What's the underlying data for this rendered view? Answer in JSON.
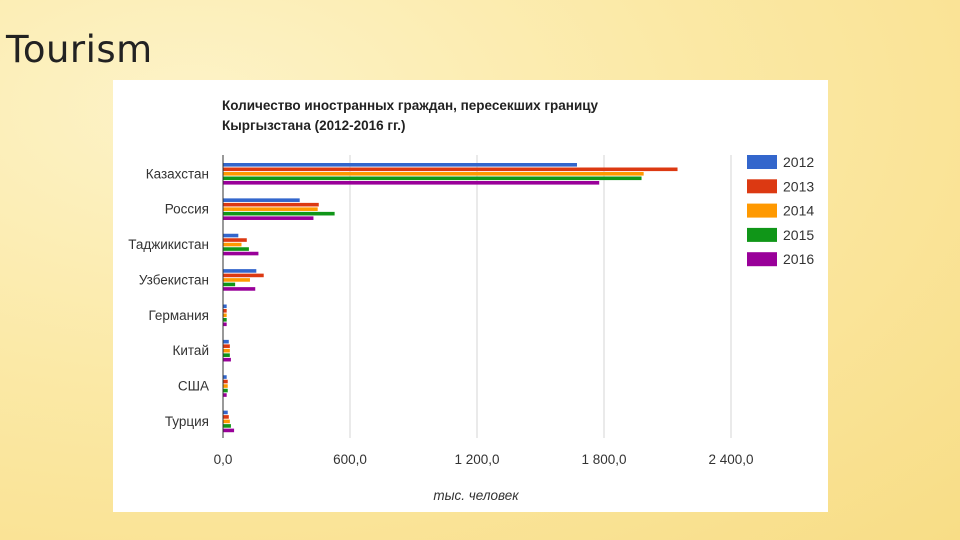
{
  "slide": {
    "title": "Tourism"
  },
  "chart_data": {
    "type": "bar",
    "orientation": "horizontal",
    "title": "Количество иностранных граждан, пересекших границу Кыргызстана (2012-2016 гг.)",
    "title_lines": [
      "Количество иностранных граждан, пересекших границу",
      "Кыргызстана (2012-2016 гг.)"
    ],
    "xlabel": "тыс. человек",
    "ylabel": "",
    "xlim": [
      0,
      2400
    ],
    "xticks": [
      0,
      600,
      1200,
      1800,
      2400
    ],
    "xtick_labels": [
      "0,0",
      "600,0",
      "1 200,0",
      "1 800,0",
      "2 400,0"
    ],
    "grid": true,
    "legend_position": "right",
    "categories": [
      "Казахстан",
      "Россия",
      "Таджикистан",
      "Узбекистан",
      "Германия",
      "Китай",
      "США",
      "Турция"
    ],
    "series": [
      {
        "name": "2012",
        "color": "#3366cc",
        "values": [
          1670,
          360,
          70,
          155,
          15,
          25,
          15,
          20
        ]
      },
      {
        "name": "2013",
        "color": "#dc3912",
        "values": [
          2145,
          450,
          110,
          190,
          15,
          30,
          20,
          25
        ]
      },
      {
        "name": "2014",
        "color": "#ff9900",
        "values": [
          1985,
          445,
          85,
          125,
          15,
          30,
          20,
          30
        ]
      },
      {
        "name": "2015",
        "color": "#109618",
        "values": [
          1975,
          525,
          120,
          55,
          15,
          30,
          20,
          35
        ]
      },
      {
        "name": "2016",
        "color": "#990099",
        "values": [
          1775,
          425,
          165,
          150,
          15,
          35,
          15,
          50
        ]
      }
    ]
  }
}
